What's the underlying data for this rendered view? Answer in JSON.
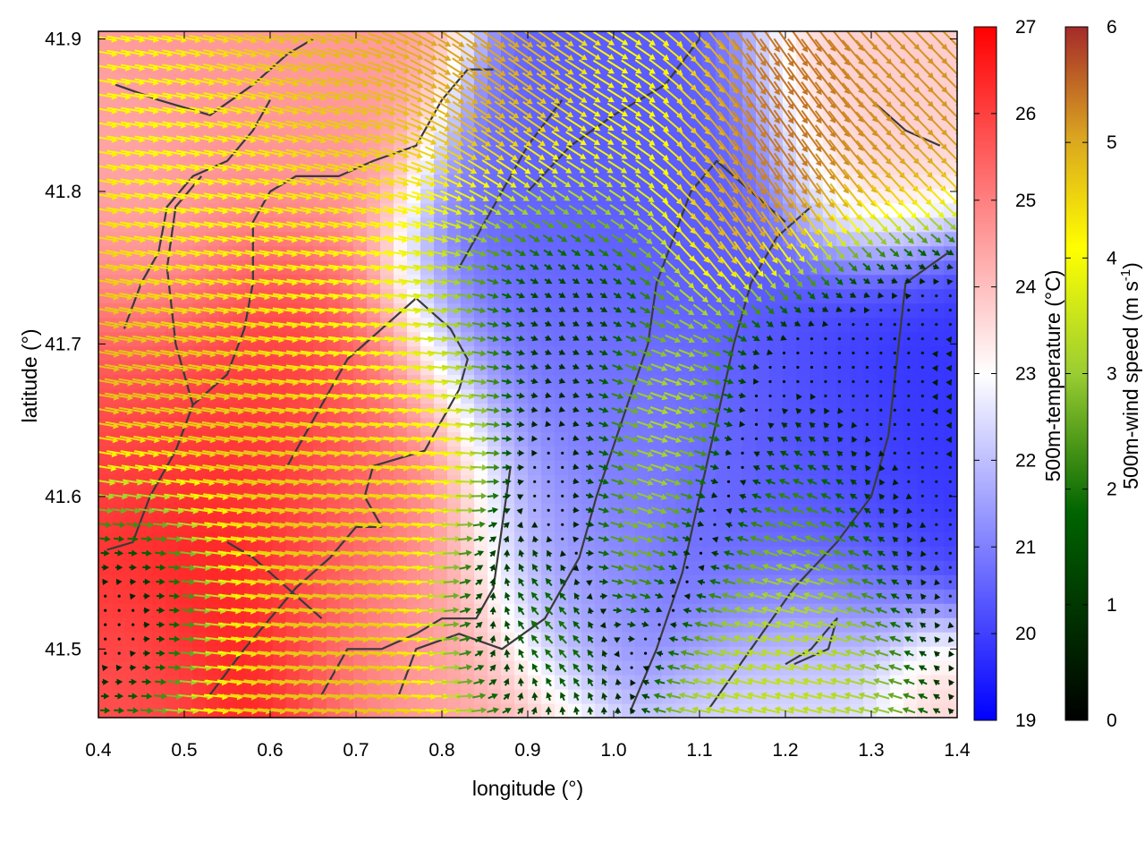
{
  "chart_data": {
    "type": "heatmap",
    "title": "",
    "xlabel": "longitude (°)",
    "ylabel": "latitude (°)",
    "xlim": [
      0.4,
      1.4
    ],
    "ylim": [
      41.455,
      41.905
    ],
    "x_ticks": [
      0.4,
      0.5,
      0.6,
      0.7,
      0.8,
      0.9,
      1.0,
      1.1,
      1.2,
      1.3,
      1.4
    ],
    "x_tick_labels": [
      "0.4",
      "0.5",
      "0.6",
      "0.7",
      "0.8",
      "0.9",
      "1.0",
      "1.1",
      "1.2",
      "1.3",
      "1.4"
    ],
    "y_ticks": [
      41.5,
      41.6,
      41.7,
      41.8,
      41.9
    ],
    "y_tick_labels": [
      "41.5",
      "41.6",
      "41.7",
      "41.8",
      "41.9"
    ],
    "grid": false,
    "temperature_colorbar": {
      "label": "500m-temperature (°C)",
      "range": [
        19,
        27
      ],
      "ticks": [
        19,
        20,
        21,
        22,
        23,
        24,
        25,
        26,
        27
      ],
      "tick_labels": [
        "19",
        "20",
        "21",
        "22",
        "23",
        "24",
        "25",
        "26",
        "27"
      ],
      "colors": [
        "#0000ff",
        "#ffffff",
        "#ff0000"
      ]
    },
    "wind_speed_colorbar": {
      "label": "500m-wind speed (m s-1)",
      "label_main": "500m-wind speed (m s",
      "label_sup": "-1",
      "label_end": ")",
      "range": [
        0,
        6
      ],
      "ticks": [
        0,
        1,
        2,
        3,
        4,
        5,
        6
      ],
      "tick_labels": [
        "0",
        "1",
        "2",
        "3",
        "4",
        "5",
        "6"
      ],
      "colors": [
        "#000000",
        "#006400",
        "#9acd32",
        "#ffff00",
        "#daa520",
        "#a52a2a"
      ]
    },
    "temperature_centers": [
      {
        "lon": 0.57,
        "lat": 41.57,
        "temp": 27.0,
        "spread": 0.12
      },
      {
        "lon": 0.47,
        "lat": 41.66,
        "temp": 25.5,
        "spread": 0.1
      },
      {
        "lon": 0.72,
        "lat": 41.58,
        "temp": 24.8,
        "spread": 0.1
      },
      {
        "lon": 0.45,
        "lat": 41.48,
        "temp": 25.5,
        "spread": 0.06
      },
      {
        "lon": 0.62,
        "lat": 41.86,
        "temp": 24.6,
        "spread": 0.08
      },
      {
        "lon": 0.45,
        "lat": 41.77,
        "temp": 24.2,
        "spread": 0.06
      },
      {
        "lon": 0.78,
        "lat": 41.5,
        "temp": 24.2,
        "spread": 0.08
      },
      {
        "lon": 0.93,
        "lat": 41.72,
        "temp": 20.6,
        "spread": 0.09
      },
      {
        "lon": 1.06,
        "lat": 41.79,
        "temp": 20.4,
        "spread": 0.09
      },
      {
        "lon": 1.33,
        "lat": 41.62,
        "temp": 19.8,
        "spread": 0.1
      },
      {
        "lon": 1.2,
        "lat": 41.6,
        "temp": 20.6,
        "spread": 0.08
      },
      {
        "lon": 1.0,
        "lat": 41.64,
        "temp": 21.0,
        "spread": 0.08
      },
      {
        "lon": 0.92,
        "lat": 41.56,
        "temp": 21.2,
        "spread": 0.06
      },
      {
        "lon": 1.3,
        "lat": 41.86,
        "temp": 23.8,
        "spread": 0.07
      },
      {
        "lon": 1.25,
        "lat": 41.47,
        "temp": 22.6,
        "spread": 0.08
      },
      {
        "lon": 1.37,
        "lat": 41.47,
        "temp": 24.2,
        "spread": 0.04
      }
    ],
    "wind_centers": [
      {
        "lon": 0.5,
        "lat": 41.65,
        "u": 4.5,
        "v": -0.8,
        "spread": 0.12
      },
      {
        "lon": 0.66,
        "lat": 41.55,
        "u": 4.2,
        "v": -0.5,
        "spread": 0.12
      },
      {
        "lon": 0.72,
        "lat": 41.48,
        "u": 4.5,
        "v": -0.4,
        "spread": 0.1
      },
      {
        "lon": 0.66,
        "lat": 41.85,
        "u": 4.5,
        "v": -1.2,
        "spread": 0.08
      },
      {
        "lon": 0.55,
        "lat": 41.79,
        "u": 3.2,
        "v": -0.5,
        "spread": 0.08
      },
      {
        "lon": 0.72,
        "lat": 41.72,
        "u": 3.2,
        "v": -0.3,
        "spread": 0.09
      },
      {
        "lon": 0.88,
        "lat": 41.87,
        "u": 4.0,
        "v": -3.0,
        "spread": 0.08
      },
      {
        "lon": 1.01,
        "lat": 41.86,
        "u": 2.8,
        "v": -1.4,
        "spread": 0.07
      },
      {
        "lon": 1.18,
        "lat": 41.85,
        "u": 3.0,
        "v": -4.5,
        "spread": 0.08
      },
      {
        "lon": 1.33,
        "lat": 41.87,
        "u": 3.5,
        "v": -3.5,
        "spread": 0.06
      },
      {
        "lon": 1.06,
        "lat": 41.61,
        "u": 3.5,
        "v": -1.2,
        "spread": 0.07
      },
      {
        "lon": 1.18,
        "lat": 41.57,
        "u": -3.0,
        "v": 1.0,
        "spread": 0.07
      },
      {
        "lon": 1.18,
        "lat": 41.5,
        "u": -2.8,
        "v": 0.6,
        "spread": 0.06
      },
      {
        "lon": 0.45,
        "lat": 41.54,
        "u": -2.0,
        "v": 0.5,
        "spread": 0.06
      },
      {
        "lon": 0.88,
        "lat": 41.52,
        "u": -2.5,
        "v": 1.5,
        "spread": 0.06
      },
      {
        "lon": 0.92,
        "lat": 41.73,
        "u": 0.2,
        "v": -0.2,
        "spread": 0.07
      },
      {
        "lon": 1.3,
        "lat": 41.65,
        "u": 0.2,
        "v": 0.3,
        "spread": 0.09
      },
      {
        "lon": 0.95,
        "lat": 41.62,
        "u": -0.6,
        "v": 0.2,
        "spread": 0.05
      }
    ],
    "boundaries": [
      [
        [
          0.41,
          41.565
        ],
        [
          0.44,
          41.57
        ],
        [
          0.46,
          41.6
        ],
        [
          0.49,
          41.63
        ],
        [
          0.51,
          41.66
        ],
        [
          0.55,
          41.68
        ],
        [
          0.57,
          41.71
        ],
        [
          0.58,
          41.74
        ],
        [
          0.58,
          41.78
        ],
        [
          0.6,
          41.8
        ],
        [
          0.63,
          41.81
        ],
        [
          0.68,
          41.81
        ],
        [
          0.72,
          41.82
        ],
        [
          0.77,
          41.83
        ],
        [
          0.8,
          41.86
        ],
        [
          0.83,
          41.88
        ],
        [
          0.86,
          41.88
        ]
      ],
      [
        [
          0.42,
          41.87
        ],
        [
          0.47,
          41.86
        ],
        [
          0.53,
          41.85
        ],
        [
          0.58,
          41.87
        ],
        [
          0.62,
          41.89
        ],
        [
          0.65,
          41.9
        ]
      ],
      [
        [
          0.43,
          41.71
        ],
        [
          0.45,
          41.74
        ],
        [
          0.47,
          41.76
        ],
        [
          0.48,
          41.79
        ],
        [
          0.51,
          41.81
        ],
        [
          0.55,
          41.82
        ],
        [
          0.58,
          41.84
        ],
        [
          0.6,
          41.86
        ]
      ],
      [
        [
          0.51,
          41.66
        ],
        [
          0.49,
          41.7
        ],
        [
          0.48,
          41.75
        ],
        [
          0.49,
          41.79
        ],
        [
          0.52,
          41.81
        ]
      ],
      [
        [
          0.73,
          41.58
        ],
        [
          0.71,
          41.6
        ],
        [
          0.72,
          41.62
        ],
        [
          0.78,
          41.63
        ],
        [
          0.8,
          41.65
        ],
        [
          0.82,
          41.67
        ],
        [
          0.83,
          41.69
        ],
        [
          0.81,
          41.71
        ],
        [
          0.77,
          41.73
        ],
        [
          0.73,
          41.71
        ],
        [
          0.69,
          41.69
        ],
        [
          0.66,
          41.66
        ],
        [
          0.62,
          41.62
        ]
      ],
      [
        [
          0.53,
          41.47
        ],
        [
          0.57,
          41.5
        ],
        [
          0.6,
          41.52
        ],
        [
          0.63,
          41.54
        ],
        [
          0.67,
          41.56
        ],
        [
          0.7,
          41.58
        ],
        [
          0.73,
          41.58
        ]
      ],
      [
        [
          0.55,
          41.57
        ],
        [
          0.58,
          41.56
        ],
        [
          0.62,
          41.54
        ],
        [
          0.66,
          41.52
        ]
      ],
      [
        [
          0.66,
          41.47
        ],
        [
          0.69,
          41.5
        ],
        [
          0.73,
          41.5
        ],
        [
          0.77,
          41.51
        ],
        [
          0.8,
          41.52
        ],
        [
          0.84,
          41.52
        ],
        [
          0.86,
          41.54
        ],
        [
          0.87,
          41.58
        ],
        [
          0.88,
          41.62
        ]
      ],
      [
        [
          0.75,
          41.47
        ],
        [
          0.77,
          41.5
        ],
        [
          0.82,
          41.51
        ],
        [
          0.87,
          41.5
        ],
        [
          0.92,
          41.52
        ],
        [
          0.96,
          41.56
        ],
        [
          0.98,
          41.6
        ],
        [
          1.01,
          41.65
        ],
        [
          1.04,
          41.7
        ],
        [
          1.05,
          41.74
        ],
        [
          1.07,
          41.77
        ],
        [
          1.09,
          41.8
        ],
        [
          1.12,
          41.82
        ],
        [
          1.16,
          41.8
        ],
        [
          1.2,
          41.78
        ]
      ],
      [
        [
          1.02,
          41.46
        ],
        [
          1.05,
          41.5
        ],
        [
          1.08,
          41.55
        ],
        [
          1.1,
          41.6
        ],
        [
          1.12,
          41.65
        ],
        [
          1.14,
          41.7
        ],
        [
          1.16,
          41.74
        ],
        [
          1.19,
          41.77
        ],
        [
          1.23,
          41.79
        ]
      ],
      [
        [
          1.11,
          41.46
        ],
        [
          1.16,
          41.5
        ],
        [
          1.21,
          41.54
        ],
        [
          1.26,
          41.57
        ],
        [
          1.3,
          41.6
        ],
        [
          1.32,
          41.64
        ],
        [
          1.33,
          41.69
        ],
        [
          1.34,
          41.74
        ],
        [
          1.39,
          41.76
        ]
      ],
      [
        [
          1.2,
          41.49
        ],
        [
          1.23,
          41.5
        ],
        [
          1.26,
          41.52
        ],
        [
          1.25,
          41.5
        ],
        [
          1.21,
          41.49
        ]
      ],
      [
        [
          0.9,
          41.8
        ],
        [
          0.95,
          41.83
        ],
        [
          1.0,
          41.85
        ],
        [
          1.06,
          41.87
        ],
        [
          1.1,
          41.9
        ]
      ],
      [
        [
          1.3,
          41.86
        ],
        [
          1.34,
          41.84
        ],
        [
          1.38,
          41.83
        ]
      ],
      [
        [
          0.82,
          41.75
        ],
        [
          0.86,
          41.79
        ],
        [
          0.9,
          41.83
        ],
        [
          0.94,
          41.86
        ]
      ]
    ]
  }
}
